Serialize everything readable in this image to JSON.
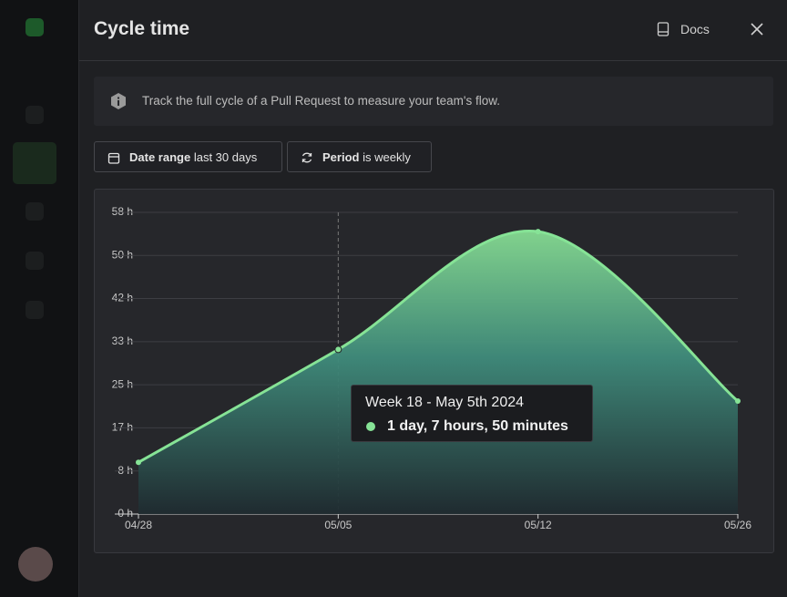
{
  "header": {
    "title": "Cycle time",
    "docs": "Docs"
  },
  "info": "Track the full cycle of a Pull Request to measure your team's flow.",
  "filters": [
    {
      "label": "Date range",
      "value": "last 30 days"
    },
    {
      "label": "Period",
      "value": "is weekly"
    }
  ],
  "chart_data": {
    "type": "area",
    "categories": [
      "04/28",
      "05/05",
      "05/12",
      "05/26"
    ],
    "series": [
      {
        "name": "Cycle time",
        "color": "#86e396",
        "values": [
          10.0,
          31.83,
          54.6,
          21.85
        ]
      }
    ],
    "ylim": [
      0,
      58.33
    ],
    "yticks": [
      {
        "value": 0,
        "label": "0 h"
      },
      {
        "value": 8.33,
        "label": "8 h"
      },
      {
        "value": 16.67,
        "label": "17 h"
      },
      {
        "value": 25,
        "label": "25 h"
      },
      {
        "value": 33.33,
        "label": "33 h"
      },
      {
        "value": 41.67,
        "label": "42 h"
      },
      {
        "value": 50,
        "label": "50 h"
      },
      {
        "value": 58.33,
        "label": "58 h"
      }
    ],
    "grid": true,
    "tooltip": {
      "title": "Week 18 - May 5th 2024",
      "value": "1 day, 7 hours, 50 minutes"
    }
  }
}
